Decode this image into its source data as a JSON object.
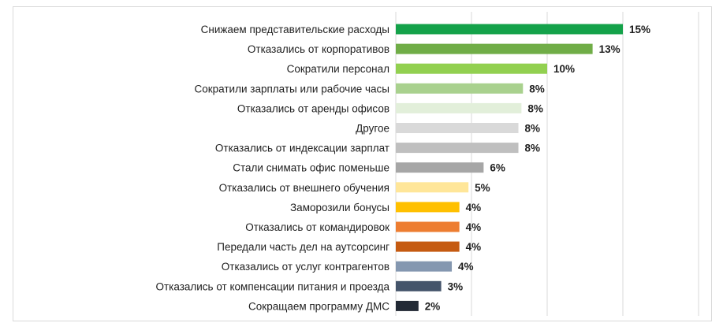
{
  "chart_data": {
    "type": "bar",
    "orientation": "horizontal",
    "categories": [
      "Снижаем представительские расходы",
      "Отказались от корпоративов",
      "Сократили персонал",
      "Сократили зарплаты или рабочие часы",
      "Отказались от аренды офисов",
      "Другое",
      "Отказались от индексации зарплат",
      "Стали снимать офис поменьше",
      "Отказались от внешнего обучения",
      "Заморозили бонусы",
      "Отказались от командировок",
      "Передали часть дел на аутсорсинг",
      "Отказались от услуг контрагентов",
      "Отказались от компенсации питания и проезда",
      "Сокращаем программу ДМС"
    ],
    "values": [
      15,
      13,
      10,
      8,
      8,
      8,
      8,
      6,
      5,
      4,
      4,
      4,
      4,
      3,
      2
    ],
    "bar_values_precise": [
      15.0,
      13.0,
      10.0,
      8.4,
      8.3,
      8.1,
      8.1,
      5.8,
      4.8,
      4.2,
      4.2,
      4.2,
      3.7,
      3.0,
      1.5
    ],
    "value_labels": [
      "15%",
      "13%",
      "10%",
      "8%",
      "8%",
      "8%",
      "8%",
      "6%",
      "5%",
      "4%",
      "4%",
      "4%",
      "4%",
      "3%",
      "2%"
    ],
    "colors": [
      "#14a24a",
      "#70ad47",
      "#92d050",
      "#a9d18e",
      "#e2efda",
      "#d9d9d9",
      "#bfbfbf",
      "#a6a6a6",
      "#ffe699",
      "#ffc000",
      "#ed7d31",
      "#c55a11",
      "#8497b0",
      "#44546a",
      "#222a35"
    ],
    "xlim": [
      0,
      20
    ],
    "grid": "vertical",
    "legend": "none",
    "title": "",
    "xlabel": "",
    "ylabel": ""
  }
}
